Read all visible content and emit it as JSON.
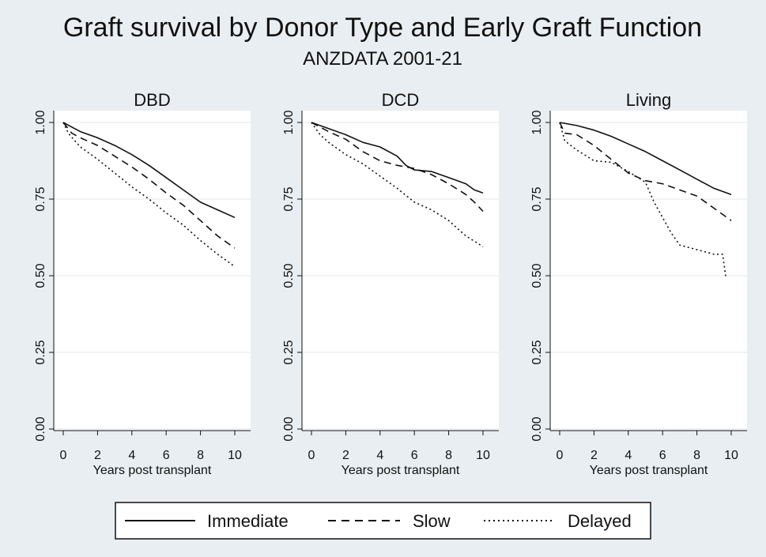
{
  "figure": {
    "title": "Graft survival by Donor Type and Early Graft Function",
    "subtitle": "ANZDATA 2001-21"
  },
  "chart_data": {
    "type": "line",
    "xlabel": "Years post transplant",
    "xlim": [
      0,
      10
    ],
    "ylim": [
      0,
      1
    ],
    "xticks": [
      "0",
      "2",
      "4",
      "6",
      "8",
      "10"
    ],
    "yticks": [
      "0.00",
      "0.25",
      "0.50",
      "0.75",
      "1.00"
    ],
    "grid": "horizontal",
    "legend": {
      "placement": "bottom",
      "entries": [
        {
          "label": "Immediate",
          "style": "solid"
        },
        {
          "label": "Slow",
          "style": "dashed"
        },
        {
          "label": "Delayed",
          "style": "dotted"
        }
      ]
    },
    "panels": [
      {
        "title": "DBD",
        "series": [
          {
            "name": "Immediate",
            "x": [
              0,
              0.5,
              1,
              2,
              3,
              4,
              5,
              6,
              7,
              8,
              9,
              10
            ],
            "y": [
              1.0,
              0.985,
              0.97,
              0.95,
              0.925,
              0.895,
              0.86,
              0.82,
              0.78,
              0.74,
              0.715,
              0.69
            ]
          },
          {
            "name": "Slow",
            "x": [
              0,
              0.5,
              1,
              2,
              3,
              4,
              5,
              6,
              7,
              8,
              9,
              10
            ],
            "y": [
              1.0,
              0.965,
              0.95,
              0.925,
              0.89,
              0.855,
              0.815,
              0.77,
              0.73,
              0.68,
              0.63,
              0.59
            ]
          },
          {
            "name": "Delayed",
            "x": [
              0,
              0.3,
              0.6,
              1,
              2,
              3,
              4,
              5,
              6,
              7,
              8,
              9,
              10
            ],
            "y": [
              1.0,
              0.965,
              0.945,
              0.92,
              0.88,
              0.835,
              0.79,
              0.75,
              0.705,
              0.665,
              0.615,
              0.57,
              0.53
            ]
          }
        ]
      },
      {
        "title": "DCD",
        "series": [
          {
            "name": "Immediate",
            "x": [
              0,
              1,
              2,
              3,
              4,
              5,
              5.5,
              6,
              7,
              8,
              9,
              9.5,
              10
            ],
            "y": [
              1.0,
              0.98,
              0.96,
              0.935,
              0.92,
              0.89,
              0.86,
              0.845,
              0.84,
              0.82,
              0.8,
              0.78,
              0.77
            ]
          },
          {
            "name": "Slow",
            "x": [
              0,
              1,
              2,
              3,
              4,
              5,
              6,
              7,
              8,
              9,
              9.5,
              10
            ],
            "y": [
              1.0,
              0.97,
              0.945,
              0.905,
              0.875,
              0.86,
              0.85,
              0.83,
              0.8,
              0.765,
              0.74,
              0.71
            ]
          },
          {
            "name": "Delayed",
            "x": [
              0,
              0.5,
              1,
              2,
              3,
              4,
              5,
              6,
              7,
              8,
              9,
              10
            ],
            "y": [
              1.0,
              0.96,
              0.935,
              0.895,
              0.865,
              0.825,
              0.785,
              0.74,
              0.715,
              0.68,
              0.63,
              0.595
            ]
          }
        ]
      },
      {
        "title": "Living",
        "series": [
          {
            "name": "Immediate",
            "x": [
              0,
              1,
              2,
              3,
              4,
              5,
              6,
              7,
              8,
              9,
              10
            ],
            "y": [
              1.0,
              0.99,
              0.975,
              0.955,
              0.93,
              0.905,
              0.875,
              0.845,
              0.815,
              0.785,
              0.765
            ]
          },
          {
            "name": "Slow",
            "x": [
              0,
              0.3,
              1,
              2,
              3,
              4,
              5,
              6,
              7,
              8,
              9,
              10
            ],
            "y": [
              1.0,
              0.965,
              0.96,
              0.925,
              0.88,
              0.835,
              0.81,
              0.8,
              0.78,
              0.76,
              0.72,
              0.68
            ]
          },
          {
            "name": "Delayed",
            "x": [
              0,
              0.3,
              1,
              2,
              3,
              4,
              5,
              5.5,
              6,
              6.5,
              7,
              8,
              9,
              9.5,
              9.7
            ],
            "y": [
              1.0,
              0.94,
              0.91,
              0.875,
              0.87,
              0.84,
              0.805,
              0.74,
              0.69,
              0.64,
              0.6,
              0.585,
              0.57,
              0.57,
              0.49
            ]
          }
        ]
      }
    ]
  }
}
